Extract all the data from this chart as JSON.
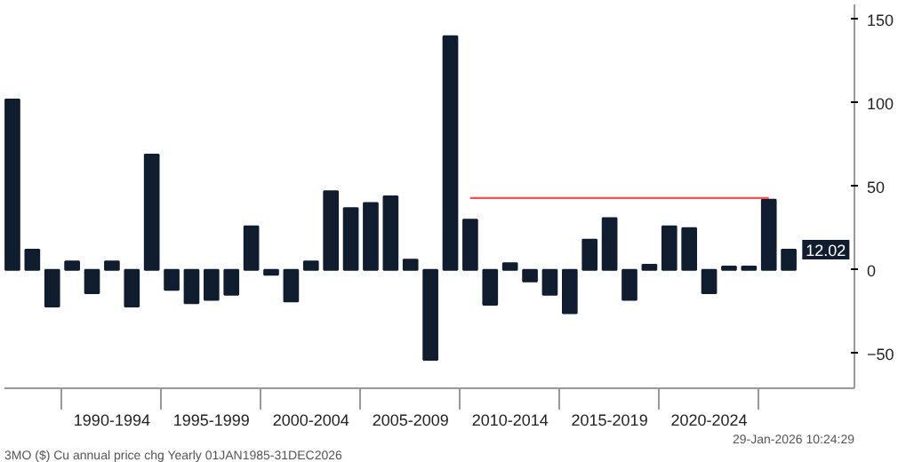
{
  "chart_data": {
    "type": "bar",
    "categories": [
      null,
      null,
      null,
      null,
      null,
      "1990-1994",
      null,
      null,
      null,
      null,
      "1995-1999",
      null,
      null,
      null,
      null,
      "2000-2004",
      null,
      null,
      null,
      null,
      "2005-2009",
      null,
      null,
      null,
      null,
      "2010-2014",
      null,
      null,
      null,
      null,
      "2015-2019",
      null,
      null,
      null,
      null,
      "2020-2024",
      null,
      null,
      null,
      null
    ],
    "series": [
      {
        "color": "#0f1d2e",
        "values": [
          102,
          12,
          -22,
          5,
          -14,
          5,
          -22,
          69,
          -12,
          -20,
          -18,
          -15,
          26,
          -3,
          -19,
          5,
          47,
          37,
          40,
          44,
          6,
          -54,
          140,
          30,
          -21,
          4,
          -7,
          -15,
          -26,
          18,
          31,
          -18,
          3,
          26,
          25,
          -14,
          2,
          2,
          42,
          12.02
        ]
      },
      {
        "type": "line",
        "color": "#ff4d4d",
        "values": [
          null,
          null,
          null,
          null,
          null,
          null,
          null,
          null,
          null,
          null,
          null,
          null,
          null,
          null,
          null,
          null,
          null,
          null,
          null,
          null,
          null,
          null,
          null,
          43,
          43,
          43,
          43,
          43,
          43,
          43,
          43,
          43,
          43,
          43,
          43,
          43,
          43,
          43,
          43,
          null
        ]
      }
    ],
    "ylim": [
      -71,
      159
    ],
    "yticks": [
      -50,
      0,
      50,
      100,
      150
    ],
    "grid": false,
    "annotations": [
      {
        "text": "12.02",
        "y": 12.02
      },
      "3MO ($) Cu annual price chg Yearly 01JAN1985-31DEC2026",
      "29-Jan-2026 10:24:29"
    ]
  }
}
